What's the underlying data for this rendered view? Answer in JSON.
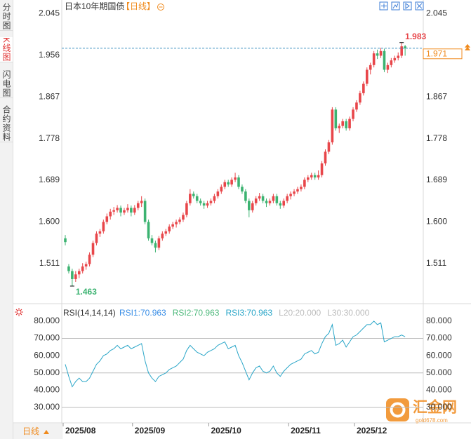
{
  "tabs": [
    "分时图",
    "K线图",
    "闪电图",
    "合约资料"
  ],
  "period_button": "日线",
  "watermark": {
    "name": "汇金网",
    "url": "gold678.com"
  },
  "chart_data": {
    "type": "candlestick",
    "title": "日本10年期国债",
    "period": "【日线】",
    "up_color": "#e8464a",
    "down_color": "#3cb371",
    "ylim": [
      1.427,
      2.062
    ],
    "yticks": [
      2.045,
      1.956,
      1.867,
      1.778,
      1.689,
      {
        "value": 1.6,
        "label": "1.600"
      },
      1.511
    ],
    "categories": [
      "2025/08",
      null,
      null,
      null,
      null,
      null,
      null,
      null,
      null,
      null,
      null,
      null,
      null,
      null,
      null,
      null,
      null,
      null,
      null,
      null,
      "2025/09",
      null,
      null,
      null,
      null,
      null,
      null,
      null,
      null,
      null,
      null,
      null,
      null,
      null,
      null,
      null,
      null,
      null,
      null,
      null,
      null,
      null,
      "2025/10",
      null,
      null,
      null,
      null,
      null,
      null,
      null,
      null,
      null,
      null,
      null,
      null,
      null,
      null,
      null,
      null,
      null,
      null,
      null,
      null,
      null,
      null,
      "2025/11",
      null,
      null,
      null,
      null,
      null,
      null,
      null,
      null,
      null,
      null,
      null,
      null,
      null,
      null,
      null,
      null,
      null,
      null,
      "2025/12",
      null,
      null,
      null,
      null,
      null,
      null,
      null,
      null,
      null,
      null,
      null,
      null,
      null,
      null
    ],
    "candles": [
      [
        1.565,
        1.572,
        1.55,
        1.557
      ],
      [
        1.505,
        1.51,
        1.49,
        1.495
      ],
      [
        1.495,
        1.5,
        1.463,
        1.478
      ],
      [
        1.478,
        1.495,
        1.472,
        1.488
      ],
      [
        1.488,
        1.5,
        1.48,
        1.495
      ],
      [
        1.495,
        1.512,
        1.49,
        1.505
      ],
      [
        1.505,
        1.515,
        1.498,
        1.51
      ],
      [
        1.51,
        1.535,
        1.505,
        1.53
      ],
      [
        1.53,
        1.56,
        1.525,
        1.555
      ],
      [
        1.555,
        1.58,
        1.55,
        1.575
      ],
      [
        1.575,
        1.585,
        1.568,
        1.58
      ],
      [
        1.58,
        1.605,
        1.575,
        1.6
      ],
      [
        1.6,
        1.618,
        1.595,
        1.612
      ],
      [
        1.612,
        1.628,
        1.605,
        1.622
      ],
      [
        1.622,
        1.632,
        1.615,
        1.625
      ],
      [
        1.625,
        1.636,
        1.62,
        1.63
      ],
      [
        1.63,
        1.635,
        1.612,
        1.62
      ],
      [
        1.62,
        1.63,
        1.615,
        1.625
      ],
      [
        1.625,
        1.638,
        1.62,
        1.63
      ],
      [
        1.63,
        1.635,
        1.612,
        1.62
      ],
      [
        1.62,
        1.636,
        1.615,
        1.63
      ],
      [
        1.63,
        1.645,
        1.625,
        1.64
      ],
      [
        1.64,
        1.655,
        1.632,
        1.645
      ],
      [
        1.645,
        1.65,
        1.595,
        1.6
      ],
      [
        1.6,
        1.605,
        1.56,
        1.565
      ],
      [
        1.565,
        1.572,
        1.55,
        1.555
      ],
      [
        1.555,
        1.56,
        1.535,
        1.545
      ],
      [
        1.545,
        1.57,
        1.54,
        1.565
      ],
      [
        1.565,
        1.58,
        1.56,
        1.575
      ],
      [
        1.575,
        1.585,
        1.57,
        1.58
      ],
      [
        1.58,
        1.595,
        1.575,
        1.59
      ],
      [
        1.59,
        1.6,
        1.585,
        1.595
      ],
      [
        1.595,
        1.605,
        1.588,
        1.6
      ],
      [
        1.6,
        1.61,
        1.595,
        1.605
      ],
      [
        1.605,
        1.62,
        1.6,
        1.615
      ],
      [
        1.615,
        1.645,
        1.61,
        1.64
      ],
      [
        1.64,
        1.67,
        1.635,
        1.66
      ],
      [
        1.66,
        1.665,
        1.65,
        1.655
      ],
      [
        1.655,
        1.66,
        1.64,
        1.645
      ],
      [
        1.645,
        1.65,
        1.635,
        1.64
      ],
      [
        1.64,
        1.645,
        1.628,
        1.635
      ],
      [
        1.635,
        1.645,
        1.63,
        1.64
      ],
      [
        1.64,
        1.65,
        1.635,
        1.645
      ],
      [
        1.645,
        1.66,
        1.64,
        1.655
      ],
      [
        1.655,
        1.67,
        1.65,
        1.665
      ],
      [
        1.665,
        1.68,
        1.66,
        1.675
      ],
      [
        1.675,
        1.69,
        1.67,
        1.685
      ],
      [
        1.685,
        1.69,
        1.675,
        1.68
      ],
      [
        1.68,
        1.695,
        1.675,
        1.69
      ],
      [
        1.69,
        1.705,
        1.685,
        1.695
      ],
      [
        1.695,
        1.7,
        1.67,
        1.675
      ],
      [
        1.675,
        1.68,
        1.66,
        1.665
      ],
      [
        1.665,
        1.67,
        1.64,
        1.645
      ],
      [
        1.645,
        1.65,
        1.61,
        1.625
      ],
      [
        1.625,
        1.645,
        1.62,
        1.64
      ],
      [
        1.64,
        1.655,
        1.635,
        1.65
      ],
      [
        1.65,
        1.662,
        1.645,
        1.655
      ],
      [
        1.655,
        1.66,
        1.64,
        1.645
      ],
      [
        1.645,
        1.65,
        1.632,
        1.64
      ],
      [
        1.64,
        1.65,
        1.635,
        1.645
      ],
      [
        1.645,
        1.66,
        1.64,
        1.655
      ],
      [
        1.655,
        1.66,
        1.635,
        1.64
      ],
      [
        1.64,
        1.645,
        1.628,
        1.635
      ],
      [
        1.635,
        1.65,
        1.63,
        1.645
      ],
      [
        1.645,
        1.66,
        1.64,
        1.655
      ],
      [
        1.655,
        1.665,
        1.648,
        1.66
      ],
      [
        1.66,
        1.67,
        1.655,
        1.665
      ],
      [
        1.665,
        1.675,
        1.66,
        1.67
      ],
      [
        1.67,
        1.68,
        1.665,
        1.675
      ],
      [
        1.675,
        1.695,
        1.67,
        1.69
      ],
      [
        1.69,
        1.7,
        1.685,
        1.695
      ],
      [
        1.695,
        1.705,
        1.69,
        1.7
      ],
      [
        1.7,
        1.705,
        1.69,
        1.695
      ],
      [
        1.695,
        1.71,
        1.69,
        1.7
      ],
      [
        1.7,
        1.73,
        1.695,
        1.725
      ],
      [
        1.725,
        1.755,
        1.72,
        1.75
      ],
      [
        1.75,
        1.775,
        1.745,
        1.77
      ],
      [
        1.77,
        1.845,
        1.765,
        1.84
      ],
      [
        1.84,
        1.845,
        1.795,
        1.8
      ],
      [
        1.8,
        1.81,
        1.79,
        1.805
      ],
      [
        1.805,
        1.82,
        1.8,
        1.815
      ],
      [
        1.815,
        1.82,
        1.795,
        1.8
      ],
      [
        1.8,
        1.825,
        1.795,
        1.82
      ],
      [
        1.82,
        1.845,
        1.815,
        1.84
      ],
      [
        1.84,
        1.86,
        1.835,
        1.855
      ],
      [
        1.855,
        1.88,
        1.85,
        1.875
      ],
      [
        1.875,
        1.9,
        1.87,
        1.895
      ],
      [
        1.895,
        1.93,
        1.89,
        1.925
      ],
      [
        1.925,
        1.94,
        1.915,
        1.935
      ],
      [
        1.935,
        1.965,
        1.93,
        1.96
      ],
      [
        1.96,
        1.968,
        1.948,
        1.955
      ],
      [
        1.955,
        1.972,
        1.95,
        1.965
      ],
      [
        1.965,
        1.97,
        1.92,
        1.925
      ],
      [
        1.925,
        1.94,
        1.918,
        1.935
      ],
      [
        1.935,
        1.95,
        1.93,
        1.945
      ],
      [
        1.945,
        1.955,
        1.94,
        1.95
      ],
      [
        1.95,
        1.962,
        1.945,
        1.955
      ],
      [
        1.955,
        1.983,
        1.95,
        1.975
      ],
      [
        1.975,
        1.978,
        1.955,
        1.971
      ]
    ],
    "rsi": {
      "title": "RSI(14,14,14)",
      "legend": [
        {
          "label": "RSI1:70.963",
          "color": "#3a8ee6"
        },
        {
          "label": "RSI2:70.963",
          "color": "#4cb87a"
        },
        {
          "label": "RSI3:70.963",
          "color": "#2aa6c8"
        },
        {
          "label": "L20:20.000",
          "color": "#bbbbbb"
        },
        {
          "label": "L30:30.000",
          "color": "#bbbbbb"
        }
      ],
      "color": "#2aa6c8",
      "ylim": [
        22.3,
        88.1
      ],
      "yticks": [
        {
          "value": 80,
          "label": "80.000"
        },
        {
          "value": 70,
          "label": "70.000"
        },
        {
          "value": 60,
          "label": "60.000"
        },
        {
          "value": 50,
          "label": "50.000"
        },
        {
          "value": 40,
          "label": "40.000"
        },
        {
          "value": 30,
          "label": "30.000"
        }
      ],
      "hlines": [
        70,
        50,
        30
      ],
      "values": [
        55,
        48,
        42,
        45,
        47,
        45,
        45,
        47,
        51,
        55,
        57,
        60,
        61,
        63,
        64,
        66,
        64,
        65,
        66,
        64,
        65,
        66,
        67,
        57,
        50,
        47,
        45,
        48,
        49,
        50,
        52,
        53,
        54,
        56,
        58,
        63,
        66,
        64,
        62,
        61,
        60,
        62,
        63,
        64,
        66,
        67,
        68,
        64,
        65,
        66,
        60,
        56,
        51,
        46,
        50,
        53,
        54,
        51,
        50,
        51,
        54,
        50,
        48,
        51,
        53,
        55,
        56,
        57,
        58,
        61,
        62,
        63,
        61,
        62,
        67,
        71,
        73,
        78,
        66,
        67,
        69,
        65,
        68,
        71,
        72,
        74,
        76,
        78,
        78,
        80,
        78,
        79,
        68,
        69,
        70,
        71,
        71,
        72,
        70.963
      ]
    }
  }
}
